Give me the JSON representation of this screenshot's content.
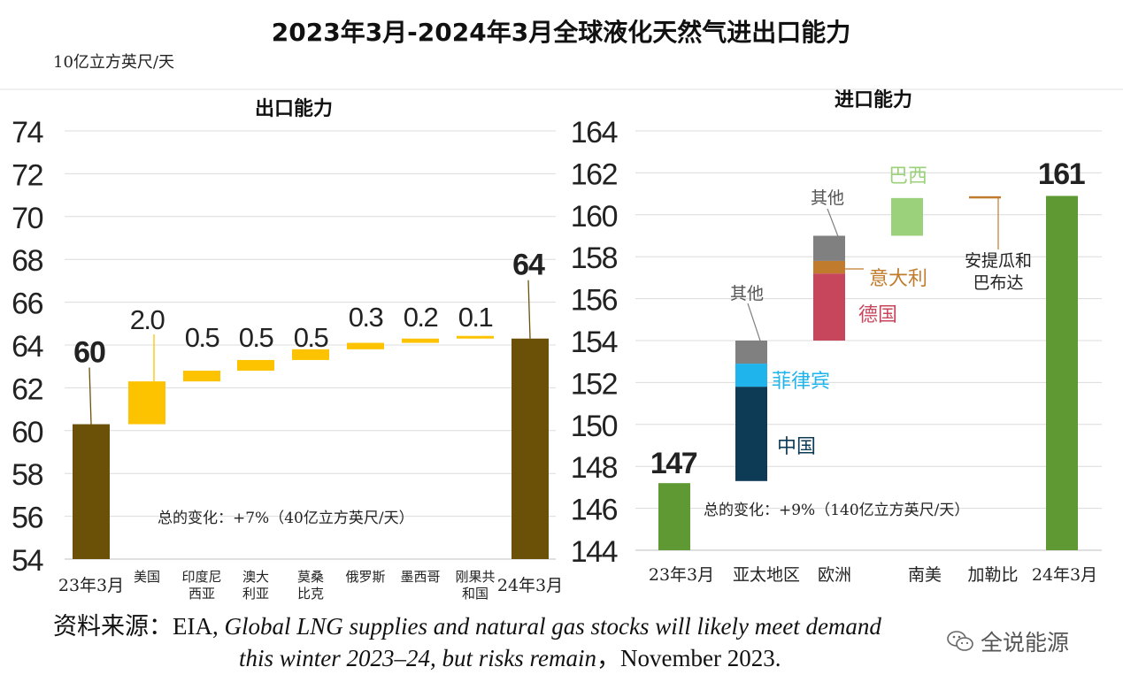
{
  "title": "2023年3月-2024年3月全球液化天然气进出口能力",
  "unit": "10亿立方英尺/天",
  "colors": {
    "dark_bar": "#6b5107",
    "gold_bar": "#fdc200",
    "gold_text": "#c8a014",
    "green": "#5e9933",
    "light_green": "#9bd17a",
    "navy": "#0d3a55",
    "sky": "#1fb4ec",
    "red": "#c8465c",
    "orange": "#c07c2c",
    "gray": "#808080"
  },
  "chart_data": [
    {
      "type": "waterfall",
      "title": "出口能力",
      "ylim": [
        54,
        74
      ],
      "yticks": [
        54,
        56,
        58,
        60,
        62,
        64,
        66,
        68,
        70,
        72,
        74
      ],
      "categories": [
        "23年3月",
        "美国",
        "印度尼西亚",
        "澳大利亚",
        "莫桑比克",
        "俄罗斯",
        "墨西哥",
        "刚果共和国",
        "24年3月"
      ],
      "category_lines": [
        [
          "23年3月"
        ],
        [
          "美国"
        ],
        [
          "印度尼",
          "西亚"
        ],
        [
          "澳大",
          "利亚"
        ],
        [
          "莫桑",
          "比克"
        ],
        [
          "俄罗斯"
        ],
        [
          "墨西哥"
        ],
        [
          "刚果共",
          "和国"
        ],
        [
          "24年3月"
        ]
      ],
      "bars": [
        {
          "kind": "total",
          "value": 60.3,
          "label": "60"
        },
        {
          "kind": "delta",
          "start": 60.3,
          "value": 2.0,
          "label": "2.0"
        },
        {
          "kind": "delta",
          "start": 62.3,
          "value": 0.5,
          "label": "0.5"
        },
        {
          "kind": "delta",
          "start": 62.8,
          "value": 0.5,
          "label": "0.5"
        },
        {
          "kind": "delta",
          "start": 63.3,
          "value": 0.5,
          "label": "0.5"
        },
        {
          "kind": "delta",
          "start": 63.8,
          "value": 0.3,
          "label": "0.3"
        },
        {
          "kind": "delta",
          "start": 64.1,
          "value": 0.2,
          "label": "0.2"
        },
        {
          "kind": "delta",
          "start": 64.3,
          "value": 0.1,
          "label": "0.1"
        },
        {
          "kind": "total",
          "value": 64.3,
          "label": "64"
        }
      ],
      "annotation": "总的变化：+7%（40亿立方英尺/天）"
    },
    {
      "type": "waterfall",
      "title": "进口能力",
      "ylim": [
        144,
        164
      ],
      "yticks": [
        144,
        146,
        148,
        150,
        152,
        154,
        156,
        158,
        160,
        162,
        164
      ],
      "categories": [
        "23年3月",
        "亚太地区",
        "欧洲",
        "南美",
        "加勒比",
        "24年3月"
      ],
      "bars": [
        {
          "category": "23年3月",
          "kind": "total",
          "value": 147.2,
          "label": "147"
        },
        {
          "category": "亚太地区",
          "segments": [
            {
              "name": "中国",
              "start": 147.3,
              "end": 151.8
            },
            {
              "name": "菲律宾",
              "start": 151.8,
              "end": 152.9
            },
            {
              "name": "其他",
              "start": 152.9,
              "end": 154.0
            }
          ]
        },
        {
          "category": "欧洲",
          "segments": [
            {
              "name": "德国",
              "start": 154.0,
              "end": 157.2
            },
            {
              "name": "意大利",
              "start": 157.2,
              "end": 157.8
            },
            {
              "name": "其他",
              "start": 157.8,
              "end": 159.0
            }
          ]
        },
        {
          "category": "南美",
          "segments": [
            {
              "name": "巴西",
              "start": 159.0,
              "end": 160.8
            }
          ]
        },
        {
          "category": "加勒比",
          "segments": [
            {
              "name": "安提瓜和巴布达",
              "start": 160.8,
              "end": 160.95
            }
          ]
        },
        {
          "category": "24年3月",
          "kind": "total",
          "value": 160.9,
          "label": "161"
        }
      ],
      "segment_labels": {
        "china": "中国",
        "philippines": "菲律宾",
        "apac_other": "其他",
        "germany": "德国",
        "italy": "意大利",
        "europe_other": "其他",
        "brazil": "巴西",
        "antigua_l1": "安提瓜和",
        "antigua_l2": "巴布达"
      },
      "annotation": "总的变化：+9%（140亿立方英尺/天）"
    }
  ],
  "source": {
    "prefix": "资料来源：EIA, ",
    "italic1": "Global LNG supplies and natural gas stocks will likely meet demand",
    "italic2": "this winter 2023–24, but risks remain",
    "suffix": "，November 2023."
  },
  "watermark": "全说能源"
}
